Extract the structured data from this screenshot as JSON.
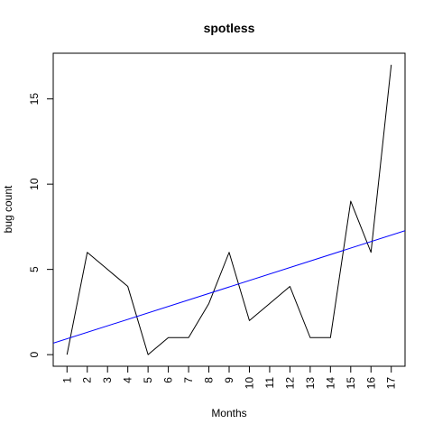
{
  "chart_data": {
    "type": "line",
    "title": "spotless",
    "xlabel": "Months",
    "ylabel": "bug count",
    "categories": [
      "1",
      "2",
      "3",
      "4",
      "5",
      "6",
      "7",
      "8",
      "9",
      "10",
      "11",
      "12",
      "13",
      "14",
      "15",
      "16",
      "17"
    ],
    "x": [
      1,
      2,
      3,
      4,
      5,
      6,
      7,
      8,
      9,
      10,
      11,
      12,
      13,
      14,
      15,
      16,
      17
    ],
    "series": [
      {
        "values": [
          0,
          6,
          5,
          4,
          0,
          1,
          1,
          3,
          6,
          2,
          3,
          4,
          1,
          1,
          9,
          6,
          17
        ],
        "color": "#000000"
      }
    ],
    "trend_line": {
      "intercept": 0.55,
      "slope": 0.38,
      "color": "#0000ff"
    },
    "y_ticks": [
      "0",
      "5",
      "10",
      "15"
    ],
    "y_tick_values": [
      0,
      5,
      10,
      15
    ],
    "xlim": [
      0.32,
      17.68
    ],
    "ylim": [
      -0.68,
      17.68
    ],
    "grid": false,
    "legend": "none"
  }
}
